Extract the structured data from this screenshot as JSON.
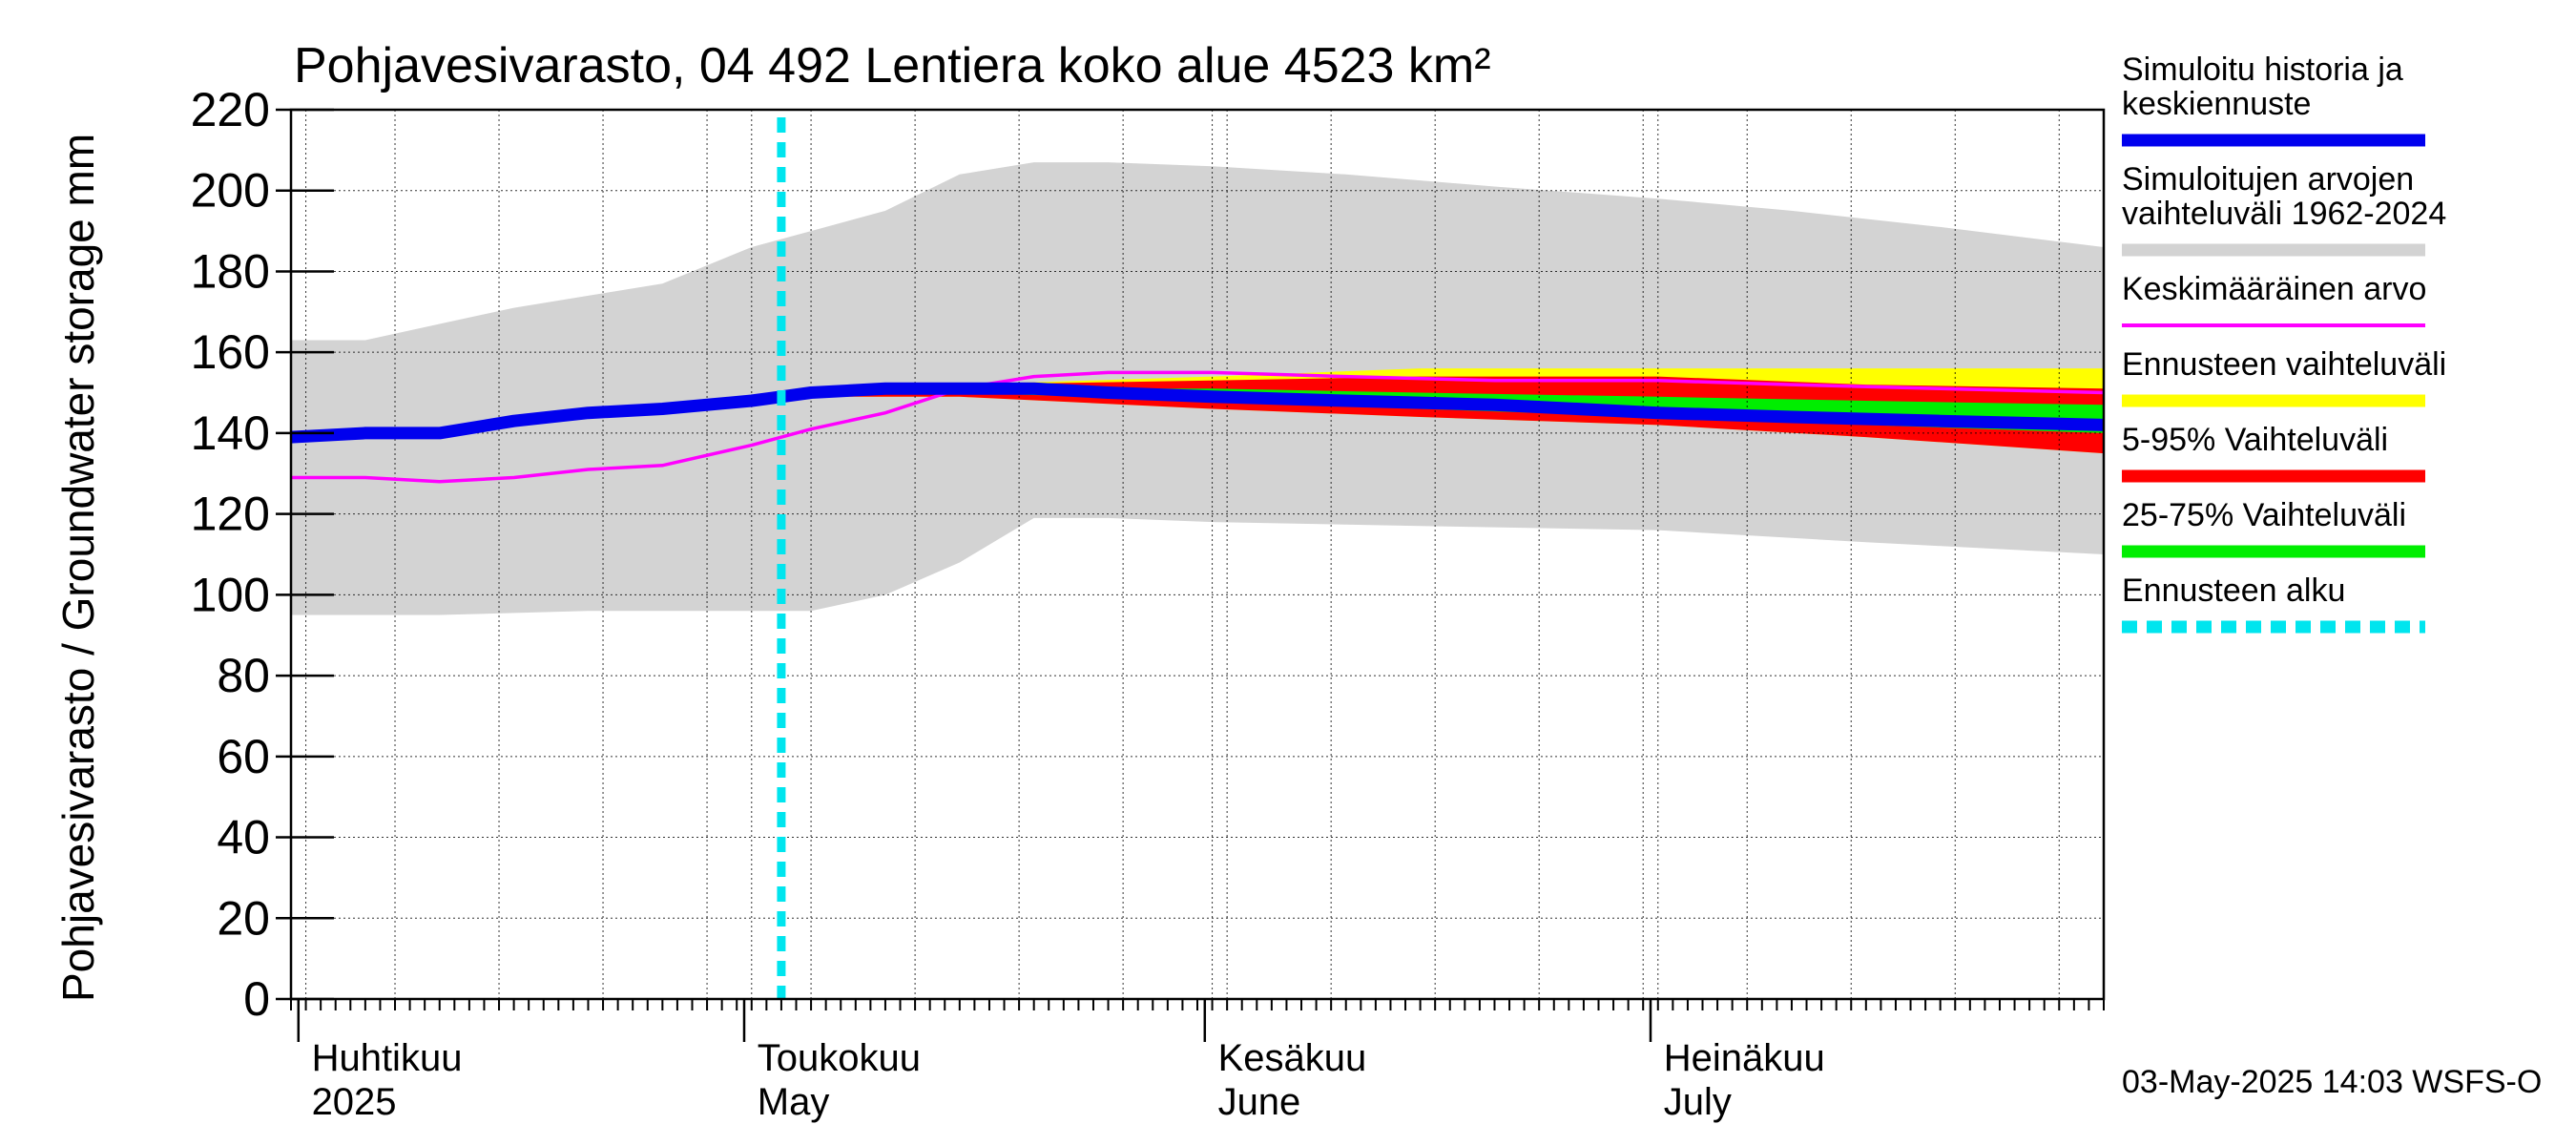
{
  "chart_data": {
    "type": "area",
    "title": "Pohjavesivarasto, 04 492 Lentiera koko alue 4523 km²",
    "ylabel": "Pohjavesivarasto / Groundwater storage   mm",
    "ylim": [
      0,
      220
    ],
    "yticks": [
      0,
      20,
      40,
      60,
      80,
      100,
      120,
      140,
      160,
      180,
      200,
      220
    ],
    "xlim": [
      "2025-03-31",
      "2025-07-31"
    ],
    "grid": true,
    "legend_position": "right",
    "forecast_start": "2025-05-03",
    "timestamp": "03-May-2025 14:03 WSFS-O",
    "month_labels": [
      {
        "date": "2025-04-01",
        "fi": "Huhtikuu",
        "en": "2025"
      },
      {
        "date": "2025-05-01",
        "fi": "Toukokuu",
        "en": "May"
      },
      {
        "date": "2025-06-01",
        "fi": "Kesäkuu",
        "en": "June"
      },
      {
        "date": "2025-07-01",
        "fi": "Heinäkuu",
        "en": "July"
      }
    ],
    "legend": [
      {
        "key": "history",
        "label_lines": [
          "Simuloitu historia ja",
          "keskiennuste"
        ],
        "color": "#0000ee",
        "style": "solid"
      },
      {
        "key": "range",
        "label_lines": [
          "Simuloitujen arvojen",
          "vaihteluväli 1962-2024"
        ],
        "color": "#d3d3d3",
        "style": "solid"
      },
      {
        "key": "mean",
        "label_lines": [
          "Keskimääräinen arvo"
        ],
        "color": "#ff00ff",
        "style": "solid"
      },
      {
        "key": "fc_range",
        "label_lines": [
          "Ennusteen vaihteluväli"
        ],
        "color": "#ffff00",
        "style": "solid"
      },
      {
        "key": "p5_95",
        "label_lines": [
          "5-95% Vaihteluväli"
        ],
        "color": "#ff0000",
        "style": "solid"
      },
      {
        "key": "p25_75",
        "label_lines": [
          "25-75% Vaihteluväli"
        ],
        "color": "#00ee00",
        "style": "solid"
      },
      {
        "key": "fc_start",
        "label_lines": [
          "Ennusteen alku"
        ],
        "color": "#00e5ee",
        "style": "dashed"
      }
    ],
    "series": [
      {
        "key": "range_upper",
        "x": [
          "2025-03-31",
          "2025-04-05",
          "2025-04-10",
          "2025-04-15",
          "2025-04-20",
          "2025-04-25",
          "2025-05-01",
          "2025-05-05",
          "2025-05-10",
          "2025-05-15",
          "2025-05-20",
          "2025-05-25",
          "2025-06-01",
          "2025-06-10",
          "2025-06-20",
          "2025-07-01",
          "2025-07-10",
          "2025-07-20",
          "2025-07-31"
        ],
        "values": [
          163,
          163,
          167,
          171,
          174,
          177,
          186,
          190,
          195,
          204,
          207,
          207,
          206,
          204,
          201,
          198,
          195,
          191,
          186
        ]
      },
      {
        "key": "range_lower",
        "x": [
          "2025-03-31",
          "2025-04-10",
          "2025-04-20",
          "2025-05-01",
          "2025-05-05",
          "2025-05-10",
          "2025-05-15",
          "2025-05-20",
          "2025-05-25",
          "2025-06-01",
          "2025-06-15",
          "2025-07-01",
          "2025-07-15",
          "2025-07-31"
        ],
        "values": [
          95,
          95,
          96,
          96,
          96,
          100,
          108,
          119,
          119,
          118,
          117,
          116,
          113,
          110
        ]
      },
      {
        "key": "mean",
        "x": [
          "2025-03-31",
          "2025-04-05",
          "2025-04-10",
          "2025-04-15",
          "2025-04-20",
          "2025-04-25",
          "2025-05-01",
          "2025-05-05",
          "2025-05-10",
          "2025-05-15",
          "2025-05-20",
          "2025-05-25",
          "2025-06-01",
          "2025-06-10",
          "2025-06-20",
          "2025-07-01",
          "2025-07-10",
          "2025-07-20",
          "2025-07-31"
        ],
        "values": [
          129,
          129,
          128,
          129,
          131,
          132,
          137,
          141,
          145,
          151,
          154,
          155,
          155,
          154,
          153,
          153,
          152,
          151,
          150
        ]
      },
      {
        "key": "history",
        "x": [
          "2025-03-31",
          "2025-04-05",
          "2025-04-10",
          "2025-04-15",
          "2025-04-20",
          "2025-04-25",
          "2025-05-01",
          "2025-05-03",
          "2025-05-05",
          "2025-05-10",
          "2025-05-15",
          "2025-05-20",
          "2025-05-25",
          "2025-06-01",
          "2025-06-10",
          "2025-06-20",
          "2025-07-01",
          "2025-07-10",
          "2025-07-20",
          "2025-07-31"
        ],
        "values": [
          139,
          140,
          140,
          143,
          145,
          146,
          148,
          149,
          150,
          151,
          151,
          151,
          150,
          149,
          148,
          147,
          145,
          144,
          143,
          142
        ]
      },
      {
        "key": "fc_range_upper",
        "x": [
          "2025-05-03",
          "2025-05-15",
          "2025-06-01",
          "2025-06-15",
          "2025-07-01",
          "2025-07-15",
          "2025-07-31"
        ],
        "values": [
          149,
          152,
          154,
          156,
          156,
          156,
          156
        ]
      },
      {
        "key": "fc_range_lower",
        "x": [
          "2025-05-03",
          "2025-05-15",
          "2025-06-01",
          "2025-06-15",
          "2025-07-01",
          "2025-07-15",
          "2025-07-31"
        ],
        "values": [
          149,
          149,
          146,
          144,
          142,
          139,
          135
        ]
      },
      {
        "key": "p95",
        "x": [
          "2025-05-03",
          "2025-05-15",
          "2025-06-01",
          "2025-06-15",
          "2025-07-01",
          "2025-07-15",
          "2025-07-31"
        ],
        "values": [
          149,
          152,
          153,
          154,
          154,
          152,
          151
        ]
      },
      {
        "key": "p5",
        "x": [
          "2025-05-03",
          "2025-05-15",
          "2025-06-01",
          "2025-06-15",
          "2025-07-01",
          "2025-07-15",
          "2025-07-31"
        ],
        "values": [
          149,
          149,
          146,
          144,
          142,
          139,
          135
        ]
      },
      {
        "key": "p75",
        "x": [
          "2025-05-03",
          "2025-05-15",
          "2025-06-01",
          "2025-06-15",
          "2025-07-01",
          "2025-07-15",
          "2025-07-31"
        ],
        "values": [
          149,
          151,
          151,
          150,
          149,
          148,
          147
        ]
      },
      {
        "key": "p25",
        "x": [
          "2025-05-03",
          "2025-05-15",
          "2025-06-01",
          "2025-06-15",
          "2025-07-01",
          "2025-07-15",
          "2025-07-31"
        ],
        "values": [
          149,
          150,
          148,
          146,
          144,
          142,
          140
        ]
      }
    ]
  }
}
